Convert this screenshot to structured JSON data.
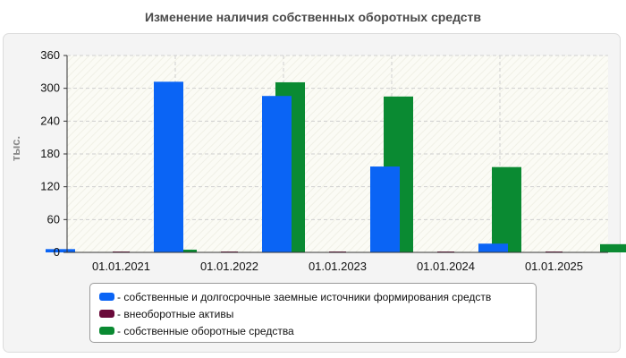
{
  "chart_data": {
    "type": "bar",
    "title": "Изменение наличия собственных оборотных средств",
    "ylabel": "тыс.",
    "xlabel": "",
    "categories": [
      "01.01.2021",
      "01.01.2022",
      "01.01.2023",
      "01.01.2024",
      "01.01.2025"
    ],
    "series": [
      {
        "name": "- собственные и долгосрочные заемные источники формирования средств",
        "color": "#0a64f5",
        "values": [
          6,
          312,
          286,
          157,
          16
        ]
      },
      {
        "name": "- внеоборотные активы",
        "color": "#6a0a3a",
        "values": [
          1,
          1,
          1,
          1,
          1
        ]
      },
      {
        "name": "- собственные оборотные средства",
        "color": "#0a8a32",
        "values": [
          5,
          311,
          285,
          156,
          15
        ]
      }
    ],
    "ylim": [
      0,
      360
    ],
    "yticks": [
      0,
      60,
      120,
      180,
      240,
      300,
      360
    ],
    "grid": true,
    "legend_position": "bottom"
  }
}
